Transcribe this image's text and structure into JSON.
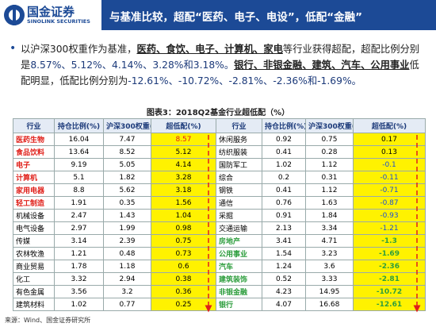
{
  "header": {
    "logo": "国金证券",
    "logo_en": "SINOLINK SECURITIES",
    "title": "与基准比较，超配“医药、电子、电设”，低配“金融”"
  },
  "bullet": {
    "segments": [
      "以沪深300权重作为基准，",
      "医药、食饮、电子、计算机、家电",
      "等行业获得超配，超配比例分别是",
      "8.57%、5.12%、4.14%、3.28%和3.18%。",
      "银行、非银金融、建筑、汽车、公用事业",
      "低配明显，低配比例分别为",
      "-12.61%、-10.72%、-2.81%、-2.36%和-1.69%。"
    ]
  },
  "table": {
    "title": "图表3：2018Q2基金行业超低配（%）",
    "headers": [
      "行业",
      "持仓比例(%)",
      "沪深300权重(%)",
      "超低配(%)",
      "行业",
      "持仓比例(%)",
      "沪深300权重(%)",
      "超低配(%)"
    ],
    "left_rows": [
      [
        "医药生物",
        16.04,
        7.47,
        8.57
      ],
      [
        "食品饮料",
        13.64,
        8.52,
        5.12
      ],
      [
        "电子",
        9.19,
        5.05,
        4.14
      ],
      [
        "计算机",
        5.1,
        1.82,
        3.28
      ],
      [
        "家用电器",
        8.8,
        5.62,
        3.18
      ],
      [
        "轻工制造",
        1.91,
        0.35,
        1.56
      ],
      [
        "机械设备",
        2.47,
        1.43,
        1.04
      ],
      [
        "电气设备",
        2.97,
        1.99,
        0.98
      ],
      [
        "传媒",
        3.14,
        2.39,
        0.75
      ],
      [
        "农林牧渔",
        1.21,
        0.48,
        0.73
      ],
      [
        "商业贸易",
        1.78,
        1.18,
        0.6
      ],
      [
        "化工",
        3.32,
        2.94,
        0.38
      ],
      [
        "有色金属",
        3.56,
        3.2,
        0.36
      ],
      [
        "建筑材料",
        1.02,
        0.77,
        0.25
      ]
    ],
    "right_rows": [
      [
        "休闲服务",
        0.92,
        0.75,
        0.17
      ],
      [
        "纺织服装",
        0.41,
        0.28,
        0.13
      ],
      [
        "国防军工",
        1.02,
        1.12,
        -0.1
      ],
      [
        "综合",
        0.2,
        0.31,
        -0.11
      ],
      [
        "钢铁",
        0.41,
        1.12,
        -0.71
      ],
      [
        "通信",
        0.76,
        1.63,
        -0.87
      ],
      [
        "采掘",
        0.91,
        1.84,
        -0.93
      ],
      [
        "交通运输",
        2.13,
        3.34,
        -1.21
      ],
      [
        "房地产",
        3.41,
        4.71,
        -1.3
      ],
      [
        "公用事业",
        1.54,
        3.23,
        -1.69
      ],
      [
        "汽车",
        1.24,
        3.6,
        -2.36
      ],
      [
        "建筑装饰",
        0.52,
        3.33,
        -2.81
      ],
      [
        "非银金融",
        4.23,
        14.95,
        -10.72
      ],
      [
        "银行",
        4.07,
        16.68,
        -12.61
      ]
    ]
  },
  "source": "来源：Wind、国金证券研究所"
}
